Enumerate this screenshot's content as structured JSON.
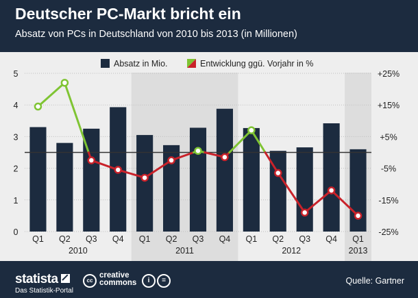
{
  "header": {
    "title": "Deutscher PC-Markt bricht ein",
    "subtitle": "Absatz von PCs in Deutschland von 2010 bis 2013 (in Millionen)"
  },
  "chart_data": {
    "type": "bar",
    "categories": [
      "Q1",
      "Q2",
      "Q3",
      "Q4",
      "Q1",
      "Q2",
      "Q3",
      "Q4",
      "Q1",
      "Q2",
      "Q3",
      "Q4",
      "Q1"
    ],
    "years": [
      {
        "label": "2010",
        "start": 0,
        "end": 3,
        "shaded": false
      },
      {
        "label": "2011",
        "start": 4,
        "end": 7,
        "shaded": true
      },
      {
        "label": "2012",
        "start": 8,
        "end": 11,
        "shaded": false
      },
      {
        "label": "2013",
        "start": 12,
        "end": 12,
        "shaded": true
      }
    ],
    "series": [
      {
        "name": "Absatz in Mio.",
        "kind": "bar",
        "axis": "left",
        "color": "#1c2b3f",
        "values": [
          3.3,
          2.8,
          3.25,
          3.93,
          3.05,
          2.73,
          3.28,
          3.88,
          3.27,
          2.55,
          2.66,
          3.42,
          2.6
        ]
      },
      {
        "name": "Entwicklung ggü. Vorjahr in %",
        "kind": "line",
        "axis": "right",
        "positive_color": "#7fc433",
        "negative_color": "#c9222a",
        "values": [
          14.5,
          22,
          -2.5,
          -5.5,
          -8,
          -2.5,
          0.5,
          -1.5,
          7,
          -6.5,
          -19,
          -12,
          -20
        ]
      }
    ],
    "y_left": {
      "min": 0,
      "max": 5,
      "ticks": [
        "0",
        "1",
        "2",
        "3",
        "4",
        "5"
      ]
    },
    "y_right": {
      "min": -25,
      "max": 25,
      "ticks": [
        "-25%",
        "-15%",
        "-5%",
        "+5%",
        "+15%",
        "+25%"
      ]
    },
    "reference_line_right": 0,
    "legend_position": "top-center",
    "grid": true
  },
  "footer": {
    "brand": "statista",
    "brand_subline": "Das Statistik-Portal",
    "cc_line1": "creative",
    "cc_line2": "commons",
    "cc_symbol": "cc",
    "by_symbol": "i",
    "eq_symbol": "=",
    "source": "Quelle: Gartner"
  },
  "colors": {
    "background": "#1c2b3f",
    "plot_background": "#eeeeee",
    "shaded_band": "#dddddd"
  }
}
